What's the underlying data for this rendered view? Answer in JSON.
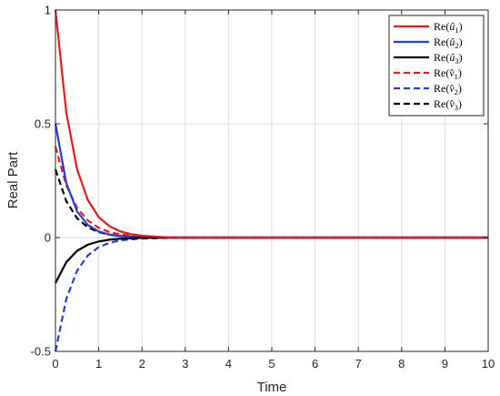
{
  "chart_data": {
    "type": "line",
    "title": "",
    "xlabel": "Time",
    "ylabel": "Real Part",
    "xlim": [
      0,
      10
    ],
    "ylim": [
      -0.5,
      1
    ],
    "xticks": [
      "0",
      "1",
      "2",
      "3",
      "4",
      "5",
      "6",
      "7",
      "8",
      "9",
      "10"
    ],
    "yticks": [
      "-0.5",
      "0",
      "0.5",
      "1"
    ],
    "grid": true,
    "legend_position": "top-right",
    "series": [
      {
        "name": "Re(û₁)",
        "legend": {
          "pre": "Re(",
          "base": "û",
          "sub": "1",
          "post": ")"
        },
        "color": "#e41a1c",
        "dash": "solid",
        "points": [
          [
            0,
            1.0
          ],
          [
            0.25,
            0.55
          ],
          [
            0.5,
            0.3
          ],
          [
            0.75,
            0.165
          ],
          [
            1.0,
            0.09
          ],
          [
            1.25,
            0.05
          ],
          [
            1.5,
            0.027
          ],
          [
            1.75,
            0.015
          ],
          [
            2.0,
            0.008
          ],
          [
            2.5,
            0.002
          ],
          [
            3.0,
            0.0
          ],
          [
            10.0,
            0.0
          ]
        ]
      },
      {
        "name": "Re(û₂)",
        "legend": {
          "pre": "Re(",
          "base": "û",
          "sub": "2",
          "post": ")"
        },
        "color": "#1f3fd6",
        "dash": "solid",
        "points": [
          [
            0,
            0.5
          ],
          [
            0.25,
            0.24
          ],
          [
            0.5,
            0.115
          ],
          [
            0.75,
            0.055
          ],
          [
            1.0,
            0.027
          ],
          [
            1.25,
            0.013
          ],
          [
            1.5,
            0.006
          ],
          [
            2.0,
            0.001
          ],
          [
            3.0,
            0.0
          ],
          [
            10.0,
            0.0
          ]
        ]
      },
      {
        "name": "Re(û₃)",
        "legend": {
          "pre": "Re(",
          "base": "û",
          "sub": "3",
          "post": ")"
        },
        "color": "#000000",
        "dash": "solid",
        "points": [
          [
            0,
            -0.2
          ],
          [
            0.25,
            -0.108
          ],
          [
            0.5,
            -0.058
          ],
          [
            0.75,
            -0.031
          ],
          [
            1.0,
            -0.017
          ],
          [
            1.25,
            -0.009
          ],
          [
            1.5,
            -0.005
          ],
          [
            2.0,
            -0.001
          ],
          [
            3.0,
            0.0
          ],
          [
            10.0,
            0.0
          ]
        ]
      },
      {
        "name": "Re(v̂₁)",
        "legend": {
          "pre": "Re(",
          "base": "v̂",
          "sub": "1",
          "post": ")"
        },
        "color": "#e41a1c",
        "dash": "dashed",
        "points": [
          [
            0,
            0.4
          ],
          [
            0.25,
            0.23
          ],
          [
            0.5,
            0.13
          ],
          [
            0.75,
            0.075
          ],
          [
            1.0,
            0.043
          ],
          [
            1.25,
            0.024
          ],
          [
            1.5,
            0.014
          ],
          [
            2.0,
            0.004
          ],
          [
            3.0,
            0.0
          ],
          [
            10.0,
            0.0
          ]
        ]
      },
      {
        "name": "Re(v̂₂)",
        "legend": {
          "pre": "Re(",
          "base": "v̂",
          "sub": "2",
          "post": ")"
        },
        "color": "#1f3fd6",
        "dash": "dashed",
        "points": [
          [
            0,
            -0.5
          ],
          [
            0.25,
            -0.27
          ],
          [
            0.5,
            -0.145
          ],
          [
            0.75,
            -0.078
          ],
          [
            1.0,
            -0.042
          ],
          [
            1.25,
            -0.023
          ],
          [
            1.5,
            -0.012
          ],
          [
            2.0,
            -0.004
          ],
          [
            3.0,
            0.0
          ],
          [
            10.0,
            0.0
          ]
        ]
      },
      {
        "name": "Re(v̂₃)",
        "legend": {
          "pre": "Re(",
          "base": "v̂",
          "sub": "3",
          "post": ")"
        },
        "color": "#000000",
        "dash": "dashed",
        "points": [
          [
            0,
            0.3
          ],
          [
            0.25,
            0.16
          ],
          [
            0.5,
            0.085
          ],
          [
            0.75,
            0.045
          ],
          [
            1.0,
            0.024
          ],
          [
            1.25,
            0.013
          ],
          [
            1.5,
            0.007
          ],
          [
            2.0,
            0.002
          ],
          [
            3.0,
            0.0
          ],
          [
            10.0,
            0.0
          ]
        ]
      }
    ]
  }
}
